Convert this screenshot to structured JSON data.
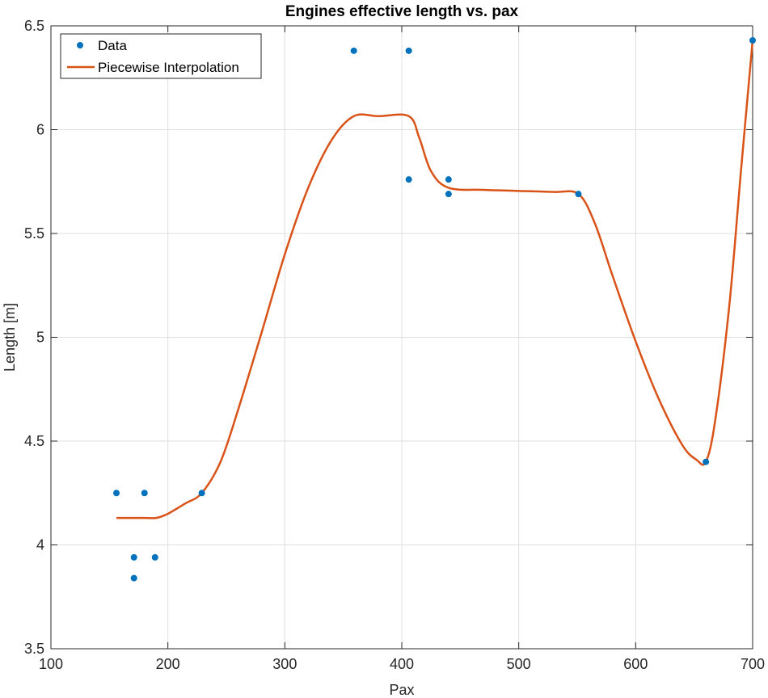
{
  "chart_data": {
    "type": "scatter",
    "title": "Engines effective length vs. pax",
    "xlabel": "Pax",
    "ylabel": "Length [m]",
    "xlim": [
      100,
      700
    ],
    "ylim": [
      3.5,
      6.5
    ],
    "xticks": [
      100,
      200,
      300,
      400,
      500,
      600,
      700
    ],
    "xtick_labels": [
      "100",
      "200",
      "300",
      "400",
      "500",
      "600",
      "700"
    ],
    "yticks": [
      3.5,
      4,
      4.5,
      5,
      5.5,
      6,
      6.5
    ],
    "ytick_labels": [
      "3.5",
      "4",
      "4.5",
      "5",
      "5.5",
      "6",
      "6.5"
    ],
    "grid": true,
    "legend_position": "top-left",
    "series": [
      {
        "name": "Data",
        "kind": "markers",
        "color": "#0072BD",
        "points": [
          [
            156,
            4.25
          ],
          [
            180,
            4.25
          ],
          [
            171,
            3.94
          ],
          [
            189,
            3.94
          ],
          [
            171,
            3.84
          ],
          [
            229,
            4.25
          ],
          [
            359,
            6.38
          ],
          [
            406,
            6.38
          ],
          [
            406,
            5.76
          ],
          [
            440,
            5.76
          ],
          [
            440,
            5.69
          ],
          [
            551,
            5.69
          ],
          [
            660,
            4.4
          ],
          [
            700,
            6.43
          ]
        ]
      },
      {
        "name": "Piecewise Interpolation",
        "kind": "line",
        "color": "#D95319",
        "points": [
          [
            156,
            4.13
          ],
          [
            170,
            4.13
          ],
          [
            180,
            4.13
          ],
          [
            190,
            4.13
          ],
          [
            200,
            4.15
          ],
          [
            215,
            4.2
          ],
          [
            229,
            4.25
          ],
          [
            245,
            4.4
          ],
          [
            260,
            4.65
          ],
          [
            280,
            5.02
          ],
          [
            300,
            5.4
          ],
          [
            320,
            5.72
          ],
          [
            340,
            5.95
          ],
          [
            359,
            6.065
          ],
          [
            380,
            6.065
          ],
          [
            406,
            6.065
          ],
          [
            415,
            5.96
          ],
          [
            425,
            5.8
          ],
          [
            440,
            5.72
          ],
          [
            470,
            5.71
          ],
          [
            500,
            5.705
          ],
          [
            530,
            5.7
          ],
          [
            551,
            5.69
          ],
          [
            565,
            5.55
          ],
          [
            580,
            5.3
          ],
          [
            600,
            4.98
          ],
          [
            620,
            4.7
          ],
          [
            640,
            4.48
          ],
          [
            652,
            4.41
          ],
          [
            660,
            4.4
          ],
          [
            668,
            4.6
          ],
          [
            680,
            5.15
          ],
          [
            690,
            5.8
          ],
          [
            700,
            6.43
          ]
        ]
      }
    ]
  }
}
